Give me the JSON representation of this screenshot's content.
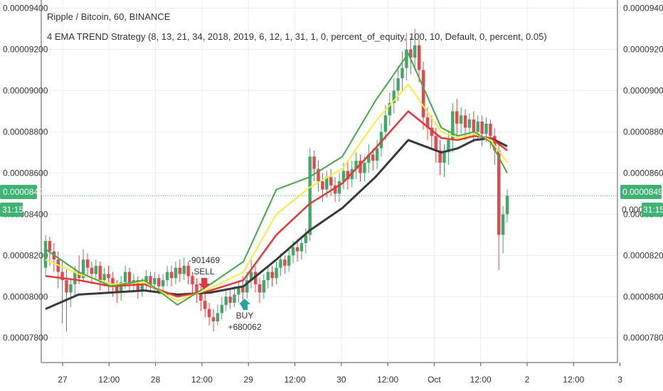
{
  "header": {
    "symbol_line": "Ripple / Bitcoin, 60, BINANCE",
    "study_line": "4 EMA TREND Strategy  (8, 13, 21, 34, 2018, 2019, 6, 12, 1, 31, 1, 0, percent_of_equity, 100, 10, Default, 0, percent, 0.05)"
  },
  "price_badge": {
    "value": "0.00008490",
    "countdown": "31:15",
    "right_value_partial": "0.000",
    "color": "#3fb373"
  },
  "trades": {
    "sell": {
      "pnl": "-901469",
      "label": "SELL",
      "color": "#e8373b"
    },
    "buy": {
      "pnl": "+680062",
      "label": "BUY",
      "color": "#26a69a"
    }
  },
  "colors": {
    "up": "#3fa968",
    "down": "#e8464b",
    "ema8": "#45a84a",
    "ema13": "#f5ee3a",
    "ema21": "#e8373b",
    "ema34": "#3a3a3a",
    "grid": "#e9eef2",
    "last_price_line": "#3fb373"
  },
  "chart_data": {
    "type": "candlestick",
    "title": "Ripple / Bitcoin, 60, BINANCE",
    "ylim": [
      7.68e-05,
      9.44e-05
    ],
    "y_ticks": [
      "0.00007800",
      "0.00008000",
      "0.00008200",
      "0.00008400",
      "0.00008600",
      "0.00008800",
      "0.00009000",
      "0.00009200",
      "0.00009400"
    ],
    "x_ticks": [
      "27",
      "12:00",
      "28",
      "12:00",
      "29",
      "12:00",
      "30",
      "12:00",
      "Oct",
      "12:00",
      "2",
      "12:00",
      "3"
    ],
    "last_price": 8.49e-05,
    "series": [
      {
        "name": "EMA 8",
        "x": [
          0,
          12,
          24,
          36,
          48,
          60,
          72,
          84,
          96,
          108,
          120,
          132,
          144,
          150,
          156,
          162,
          168
        ],
        "values": [
          8.23e-05,
          8.12e-05,
          8.05e-05,
          8.08e-05,
          7.96e-05,
          8.06e-05,
          8.17e-05,
          8.52e-05,
          8.58e-05,
          8.68e-05,
          8.95e-05,
          9.18e-05,
          8.82e-05,
          8.78e-05,
          8.8e-05,
          8.75e-05,
          8.6e-05
        ]
      },
      {
        "name": "EMA 13",
        "x": [
          0,
          12,
          24,
          36,
          48,
          60,
          72,
          84,
          96,
          108,
          120,
          132,
          144,
          150,
          156,
          162,
          168
        ],
        "values": [
          8.18e-05,
          8.11e-05,
          8.06e-05,
          8.07e-05,
          7.98e-05,
          8.04e-05,
          8.12e-05,
          8.4e-05,
          8.53e-05,
          8.62e-05,
          8.85e-05,
          9.03e-05,
          8.8e-05,
          8.77e-05,
          8.79e-05,
          8.76e-05,
          8.65e-05
        ]
      },
      {
        "name": "EMA 21",
        "x": [
          0,
          12,
          24,
          36,
          48,
          60,
          72,
          84,
          96,
          108,
          120,
          132,
          144,
          150,
          156,
          162,
          168
        ],
        "values": [
          8.1e-05,
          8.08e-05,
          8.05e-05,
          8.06e-05,
          8e-05,
          8.03e-05,
          8.08e-05,
          8.3e-05,
          8.45e-05,
          8.55e-05,
          8.72e-05,
          8.9e-05,
          8.77e-05,
          8.76e-05,
          8.78e-05,
          8.77e-05,
          8.71e-05
        ]
      },
      {
        "name": "EMA 34",
        "x": [
          0,
          12,
          24,
          36,
          48,
          60,
          72,
          84,
          96,
          108,
          120,
          132,
          144,
          150,
          156,
          162,
          168
        ],
        "values": [
          7.94e-05,
          8.01e-05,
          8.02e-05,
          8.03e-05,
          8.01e-05,
          8.02e-05,
          8.05e-05,
          8.18e-05,
          8.32e-05,
          8.43e-05,
          8.58e-05,
          8.76e-05,
          8.7e-05,
          8.72e-05,
          8.76e-05,
          8.77e-05,
          8.73e-05
        ]
      }
    ],
    "candles": [
      [
        0,
        8.14e-05,
        8.27e-05,
        8.3e-05,
        8.1e-05
      ],
      [
        1,
        8.27e-05,
        8.22e-05,
        8.29e-05,
        8.15e-05
      ],
      [
        2,
        8.22e-05,
        8.18e-05,
        8.26e-05,
        8.12e-05
      ],
      [
        3,
        8.18e-05,
        8.12e-05,
        8.22e-05,
        8.04e-05
      ],
      [
        4,
        8.12e-05,
        8.08e-05,
        8.18e-05,
        7.87e-05
      ],
      [
        5,
        8.08e-05,
        8.02e-05,
        8.14e-05,
        7.83e-05
      ],
      [
        6,
        8.02e-05,
        8.06e-05,
        8.08e-05,
        7.95e-05
      ],
      [
        7,
        8.06e-05,
        8.12e-05,
        8.15e-05,
        8e-05
      ],
      [
        8,
        8.12e-05,
        8.09e-05,
        8.2e-05,
        8.06e-05
      ],
      [
        9,
        8.09e-05,
        8.18e-05,
        8.23e-05,
        8.07e-05
      ],
      [
        10,
        8.18e-05,
        8.14e-05,
        8.21e-05,
        8.1e-05
      ],
      [
        11,
        8.14e-05,
        8.11e-05,
        8.17e-05,
        8.06e-05
      ],
      [
        12,
        8.11e-05,
        8.15e-05,
        8.18e-05,
        8.08e-05
      ],
      [
        13,
        8.15e-05,
        8.08e-05,
        8.17e-05,
        8.03e-05
      ],
      [
        14,
        8.08e-05,
        8.11e-05,
        8.14e-05,
        8.05e-05
      ],
      [
        15,
        8.11e-05,
        8.09e-05,
        8.15e-05,
        8.02e-05
      ],
      [
        16,
        8.09e-05,
        8.05e-05,
        8.12e-05,
        8e-05
      ],
      [
        17,
        8.05e-05,
        8.02e-05,
        8.08e-05,
        7.97e-05
      ],
      [
        18,
        8.02e-05,
        8.07e-05,
        8.1e-05,
        7.98e-05
      ],
      [
        19,
        8.07e-05,
        8.12e-05,
        8.15e-05,
        8.04e-05
      ],
      [
        20,
        8.12e-05,
        8.06e-05,
        8.14e-05,
        8.02e-05
      ],
      [
        21,
        8.06e-05,
        8.08e-05,
        8.11e-05,
        8.02e-05
      ],
      [
        22,
        8.08e-05,
        8.03e-05,
        8.1e-05,
        7.99e-05
      ],
      [
        23,
        8.03e-05,
        8.06e-05,
        8.09e-05,
        8e-05
      ],
      [
        24,
        8.06e-05,
        8.1e-05,
        8.13e-05,
        8.03e-05
      ],
      [
        25,
        8.1e-05,
        8.06e-05,
        8.12e-05,
        8.02e-05
      ],
      [
        26,
        8.06e-05,
        8.09e-05,
        8.12e-05,
        8.03e-05
      ],
      [
        27,
        8.09e-05,
        8.05e-05,
        8.11e-05,
        8.01e-05
      ],
      [
        28,
        8.05e-05,
        8.08e-05,
        8.11e-05,
        8.02e-05
      ],
      [
        29,
        8.08e-05,
        8.12e-05,
        8.15e-05,
        8.05e-05
      ],
      [
        30,
        8.12e-05,
        8.09e-05,
        8.15e-05,
        8.05e-05
      ],
      [
        31,
        8.09e-05,
        8.14e-05,
        8.17e-05,
        8.06e-05
      ],
      [
        32,
        8.14e-05,
        8.11e-05,
        8.18e-05,
        8.07e-05
      ],
      [
        33,
        8.11e-05,
        8.15e-05,
        8.19e-05,
        8.08e-05
      ],
      [
        34,
        8.15e-05,
        8.1e-05,
        8.17e-05,
        8.06e-05
      ],
      [
        35,
        8.1e-05,
        8.06e-05,
        8.12e-05,
        8.02e-05
      ],
      [
        36,
        8.06e-05,
        8.02e-05,
        8.09e-05,
        7.97e-05
      ],
      [
        37,
        8.02e-05,
        7.98e-05,
        8.05e-05,
        7.93e-05
      ],
      [
        38,
        7.98e-05,
        7.94e-05,
        8.02e-05,
        7.9e-05
      ],
      [
        39,
        7.94e-05,
        7.9e-05,
        7.97e-05,
        7.86e-05
      ],
      [
        40,
        7.9e-05,
        7.88e-05,
        7.94e-05,
        7.83e-05
      ],
      [
        41,
        7.88e-05,
        7.92e-05,
        7.96e-05,
        7.86e-05
      ],
      [
        42,
        7.92e-05,
        7.96e-05,
        8e-05,
        7.89e-05
      ],
      [
        43,
        7.96e-05,
        8e-05,
        8.03e-05,
        7.93e-05
      ],
      [
        44,
        8e-05,
        7.97e-05,
        8.04e-05,
        7.94e-05
      ],
      [
        45,
        7.97e-05,
        8.01e-05,
        8.05e-05,
        7.95e-05
      ],
      [
        46,
        8.01e-05,
        8.05e-05,
        8.08e-05,
        7.97e-05
      ],
      [
        47,
        8.05e-05,
        8.02e-05,
        8.1e-05,
        7.98e-05
      ],
      [
        48,
        8.02e-05,
        8.08e-05,
        8.12e-05,
        7.99e-05
      ],
      [
        49,
        8.08e-05,
        8.12e-05,
        8.18e-05,
        8.04e-05
      ],
      [
        50,
        8.12e-05,
        8.06e-05,
        8.15e-05,
        8.02e-05
      ],
      [
        51,
        8.06e-05,
        8.02e-05,
        8.09e-05,
        7.97e-05
      ],
      [
        52,
        8.02e-05,
        8.08e-05,
        8.11e-05,
        7.99e-05
      ],
      [
        53,
        8.08e-05,
        8.12e-05,
        8.15e-05,
        8.04e-05
      ],
      [
        54,
        8.12e-05,
        8.09e-05,
        8.15e-05,
        8.05e-05
      ],
      [
        55,
        8.09e-05,
        8.14e-05,
        8.17e-05,
        8.06e-05
      ],
      [
        56,
        8.14e-05,
        8.18e-05,
        8.21e-05,
        8.1e-05
      ],
      [
        57,
        8.18e-05,
        8.15e-05,
        8.2e-05,
        8.11e-05
      ],
      [
        58,
        8.15e-05,
        8.2e-05,
        8.23e-05,
        8.12e-05
      ],
      [
        59,
        8.2e-05,
        8.24e-05,
        8.27e-05,
        8.16e-05
      ],
      [
        60,
        8.24e-05,
        8.22e-05,
        8.28e-05,
        8.17e-05
      ],
      [
        61,
        8.22e-05,
        8.26e-05,
        8.29e-05,
        8.18e-05
      ],
      [
        62,
        8.26e-05,
        8.3e-05,
        8.33e-05,
        8.21e-05
      ],
      [
        63,
        8.3e-05,
        8.68e-05,
        8.72e-05,
        8.27e-05
      ],
      [
        64,
        8.68e-05,
        8.62e-05,
        8.71e-05,
        8.56e-05
      ],
      [
        65,
        8.62e-05,
        8.56e-05,
        8.66e-05,
        8.51e-05
      ],
      [
        66,
        8.56e-05,
        8.52e-05,
        8.6e-05,
        8.46e-05
      ],
      [
        67,
        8.52e-05,
        8.58e-05,
        8.61e-05,
        8.48e-05
      ],
      [
        68,
        8.58e-05,
        8.54e-05,
        8.62e-05,
        8.49e-05
      ],
      [
        69,
        8.54e-05,
        8.5e-05,
        8.58e-05,
        8.46e-05
      ],
      [
        70,
        8.5e-05,
        8.56e-05,
        8.6e-05,
        8.46e-05
      ],
      [
        71,
        8.56e-05,
        8.61e-05,
        8.65e-05,
        8.52e-05
      ],
      [
        72,
        8.61e-05,
        8.57e-05,
        8.66e-05,
        8.52e-05
      ],
      [
        73,
        8.57e-05,
        8.62e-05,
        8.66e-05,
        8.53e-05
      ],
      [
        74,
        8.62e-05,
        8.66e-05,
        8.7e-05,
        8.57e-05
      ],
      [
        75,
        8.66e-05,
        8.6e-05,
        8.69e-05,
        8.56e-05
      ],
      [
        76,
        8.6e-05,
        8.65e-05,
        8.68e-05,
        8.56e-05
      ],
      [
        77,
        8.65e-05,
        8.69e-05,
        8.74e-05,
        8.6e-05
      ],
      [
        78,
        8.69e-05,
        8.66e-05,
        8.72e-05,
        8.61e-05
      ],
      [
        79,
        8.66e-05,
        8.72e-05,
        8.76e-05,
        8.62e-05
      ],
      [
        80,
        8.72e-05,
        8.8e-05,
        8.84e-05,
        8.68e-05
      ],
      [
        81,
        8.8e-05,
        8.88e-05,
        8.93e-05,
        8.76e-05
      ],
      [
        82,
        8.88e-05,
        8.94e-05,
        8.99e-05,
        8.83e-05
      ],
      [
        83,
        8.94e-05,
        9e-05,
        9.06e-05,
        8.89e-05
      ],
      [
        84,
        9e-05,
        9.06e-05,
        9.12e-05,
        8.95e-05
      ],
      [
        85,
        9.06e-05,
        9.11e-05,
        9.19e-05,
        9e-05
      ],
      [
        86,
        9.11e-05,
        9.2e-05,
        9.28e-05,
        9.05e-05
      ],
      [
        87,
        9.2e-05,
        9.16e-05,
        9.26e-05,
        9.08e-05
      ],
      [
        88,
        9.16e-05,
        9.22e-05,
        9.3e-05,
        9.1e-05
      ],
      [
        89,
        9.22e-05,
        9.1e-05,
        9.25e-05,
        9.04e-05
      ],
      [
        90,
        9.1e-05,
        8.87e-05,
        9.14e-05,
        8.81e-05
      ],
      [
        91,
        8.87e-05,
        8.82e-05,
        8.92e-05,
        8.76e-05
      ],
      [
        92,
        8.82e-05,
        8.78e-05,
        8.88e-05,
        8.72e-05
      ],
      [
        93,
        8.78e-05,
        8.71e-05,
        8.82e-05,
        8.65e-05
      ],
      [
        94,
        8.71e-05,
        8.65e-05,
        8.76e-05,
        8.59e-05
      ],
      [
        95,
        8.65e-05,
        8.7e-05,
        8.74e-05,
        8.58e-05
      ],
      [
        96,
        8.7e-05,
        8.76e-05,
        8.8e-05,
        8.64e-05
      ],
      [
        97,
        8.76e-05,
        8.9e-05,
        8.94e-05,
        8.7e-05
      ],
      [
        98,
        8.9e-05,
        8.84e-05,
        8.96e-05,
        8.78e-05
      ],
      [
        99,
        8.84e-05,
        8.88e-05,
        8.92e-05,
        8.79e-05
      ],
      [
        100,
        8.88e-05,
        8.82e-05,
        8.91e-05,
        8.76e-05
      ],
      [
        101,
        8.82e-05,
        8.86e-05,
        8.89e-05,
        8.77e-05
      ],
      [
        102,
        8.86e-05,
        8.8e-05,
        8.9e-05,
        8.75e-05
      ],
      [
        103,
        8.8e-05,
        8.85e-05,
        8.88e-05,
        8.76e-05
      ],
      [
        104,
        8.85e-05,
        8.79e-05,
        8.88e-05,
        8.73e-05
      ],
      [
        105,
        8.79e-05,
        8.84e-05,
        8.87e-05,
        8.75e-05
      ],
      [
        106,
        8.84e-05,
        8.78e-05,
        8.86e-05,
        8.72e-05
      ],
      [
        107,
        8.78e-05,
        8.71e-05,
        8.82e-05,
        8.64e-05
      ],
      [
        108,
        8.71e-05,
        8.3e-05,
        8.74e-05,
        8.13e-05
      ],
      [
        109,
        8.3e-05,
        8.4e-05,
        8.44e-05,
        8.21e-05
      ],
      [
        110,
        8.4e-05,
        8.49e-05,
        8.52e-05,
        8.36e-05
      ]
    ]
  }
}
